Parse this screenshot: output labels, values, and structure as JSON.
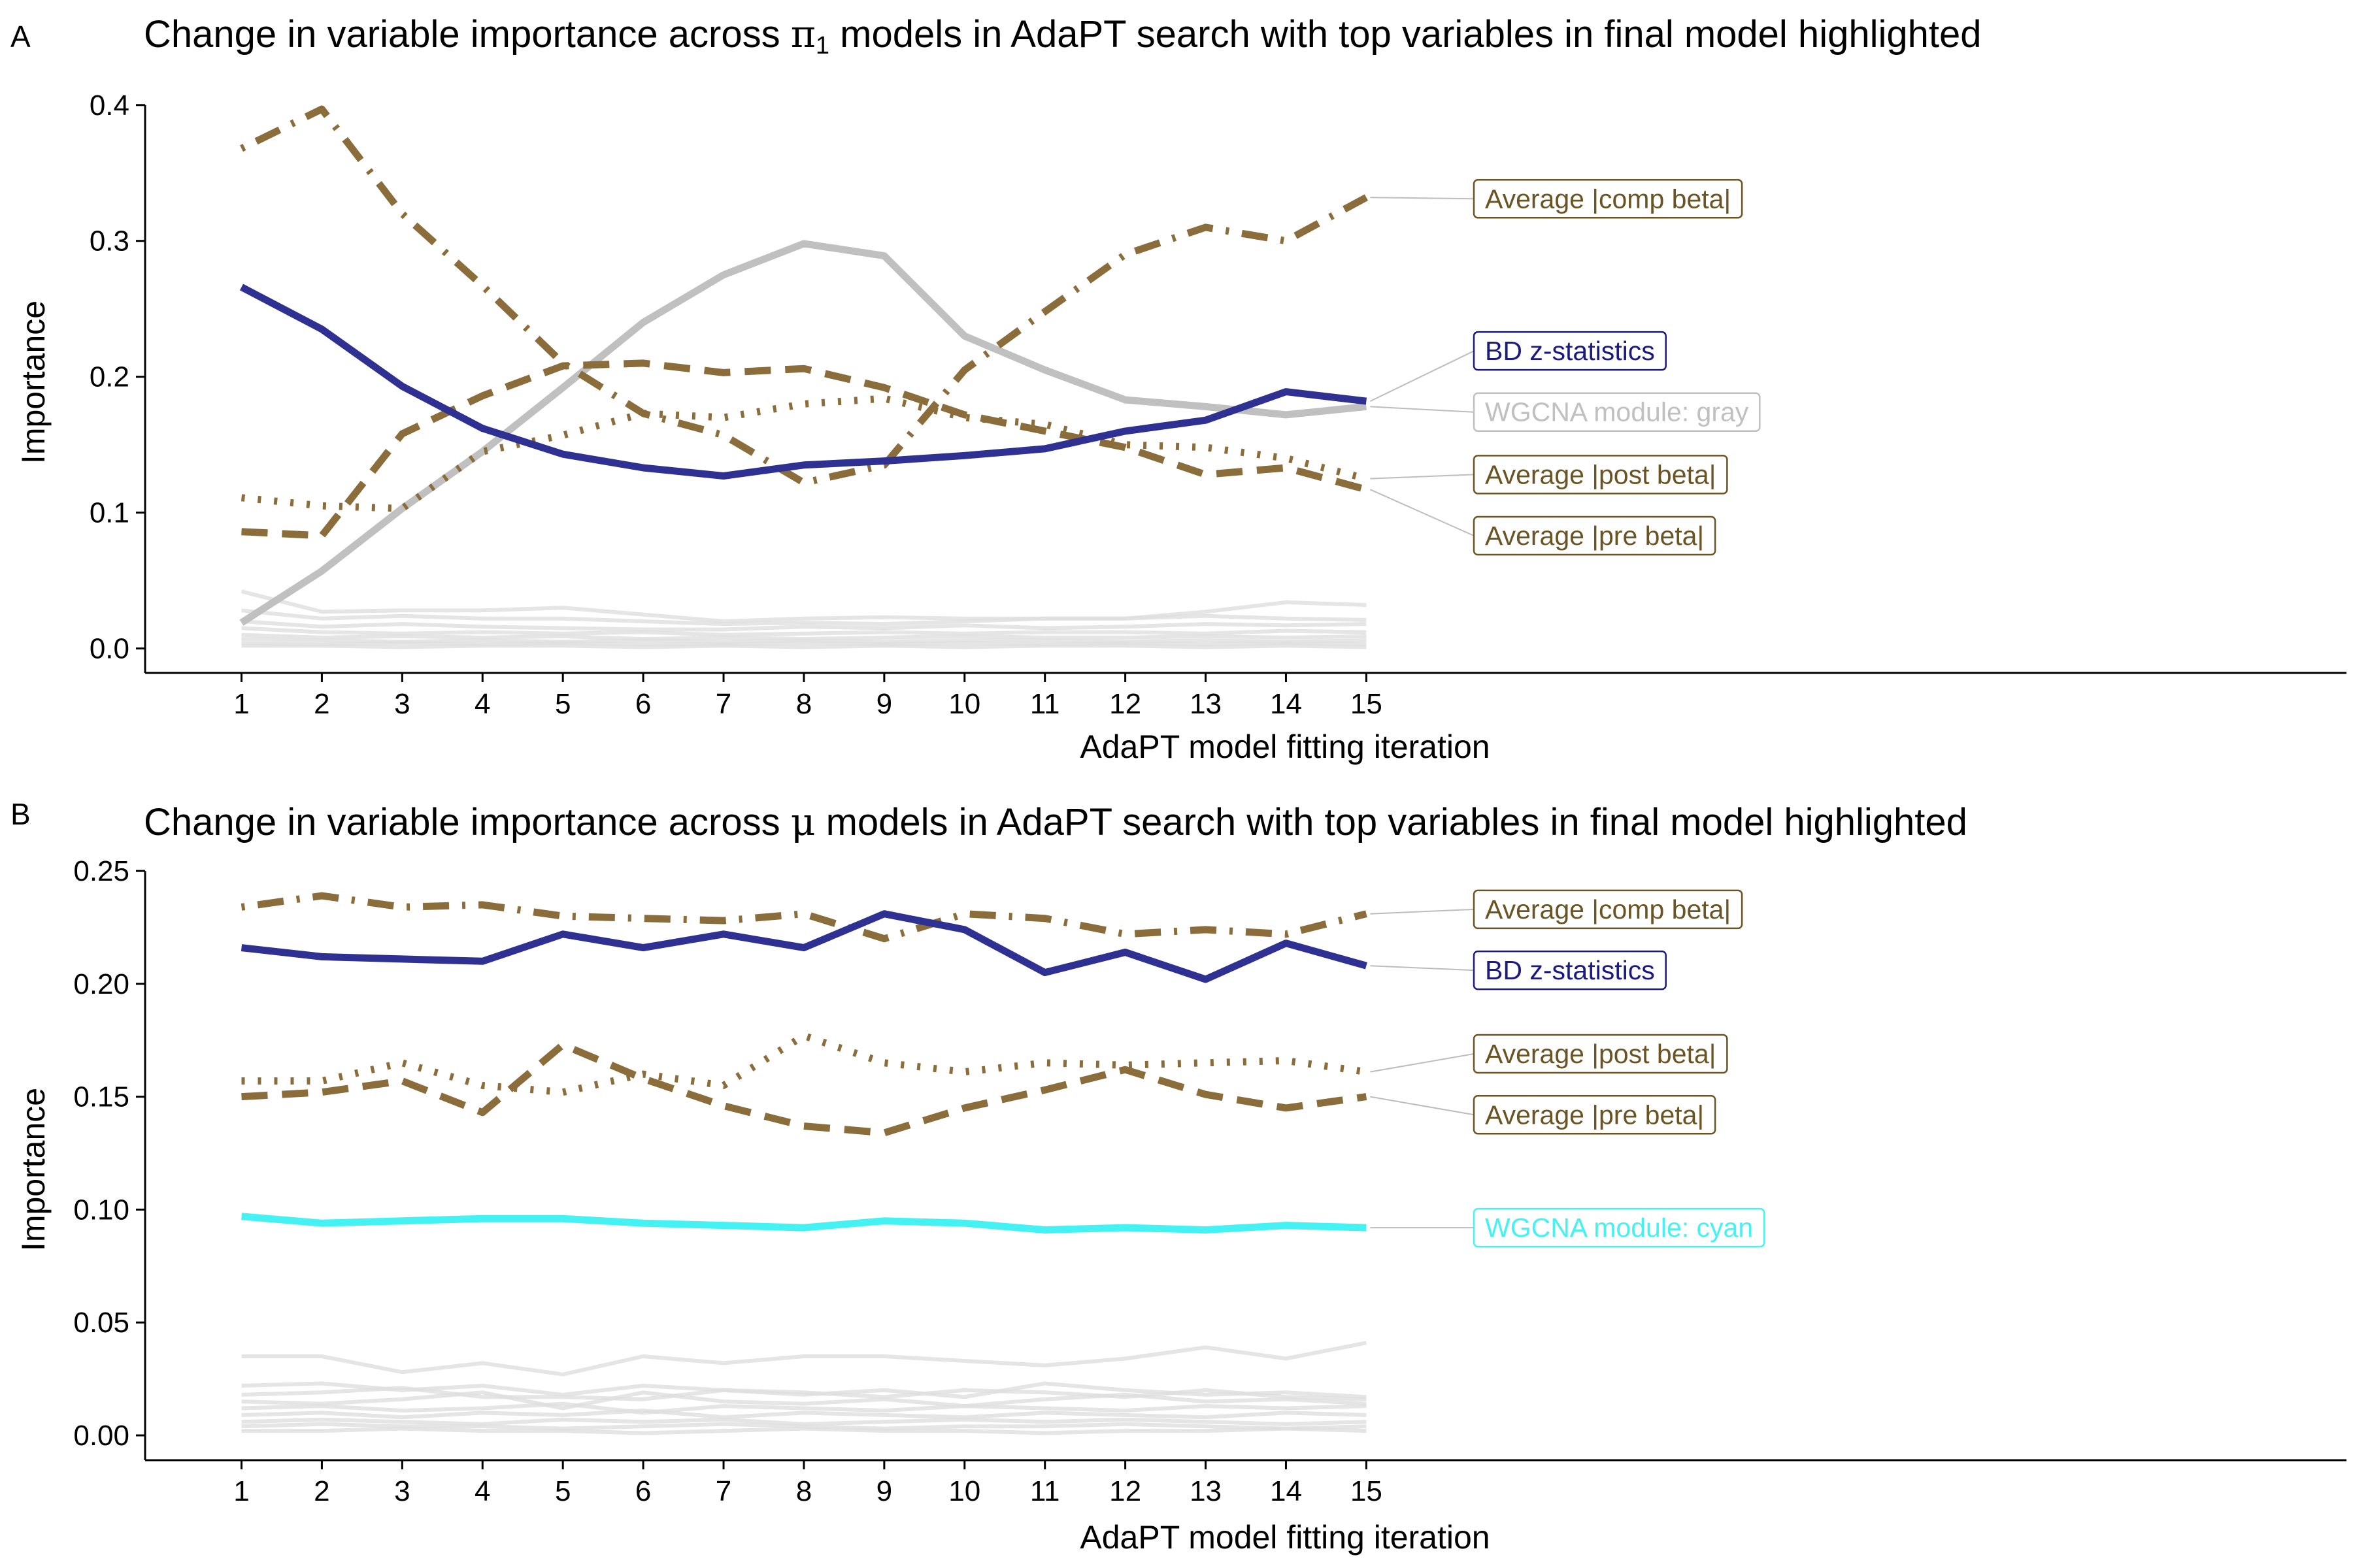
{
  "colors": {
    "bd": "#2e3192",
    "bd_label": "#1a1a80",
    "avg": "#8b6d3b",
    "avg_label": "#6b5424",
    "gray_module": "#c0c0c0",
    "cyan_module": "#44f2f4",
    "background_lines": "#dedede"
  },
  "chart_data": [
    {
      "type": "line",
      "panel": "A",
      "title_parts": [
        "Change in variable importance across ",
        "π",
        "1",
        " models in AdaPT search with top variables in final model highlighted"
      ],
      "xlabel": "AdaPT model fitting iteration",
      "ylabel": "Importance",
      "x": [
        1,
        2,
        3,
        4,
        5,
        6,
        7,
        8,
        9,
        10,
        11,
        12,
        13,
        14,
        15
      ],
      "xlim": [
        -0.2,
        27.2
      ],
      "ylim": [
        -0.018,
        0.41
      ],
      "yticks": [
        0.0,
        0.1,
        0.2,
        0.3,
        0.4
      ],
      "ytick_labels": [
        "0.0",
        "0.1",
        "0.2",
        "0.3",
        "0.4"
      ],
      "grid": false,
      "legend": "direct labels right",
      "background_series": [
        [
          0.042,
          0.027,
          0.028,
          0.028,
          0.03,
          0.025,
          0.02,
          0.022,
          0.023,
          0.022,
          0.022,
          0.022,
          0.027,
          0.034,
          0.032
        ],
        [
          0.028,
          0.022,
          0.024,
          0.022,
          0.022,
          0.02,
          0.018,
          0.019,
          0.018,
          0.02,
          0.022,
          0.022,
          0.024,
          0.022,
          0.021
        ],
        [
          0.02,
          0.016,
          0.018,
          0.016,
          0.015,
          0.014,
          0.014,
          0.016,
          0.015,
          0.017,
          0.015,
          0.016,
          0.018,
          0.017,
          0.018
        ],
        [
          0.015,
          0.012,
          0.011,
          0.012,
          0.011,
          0.012,
          0.01,
          0.011,
          0.012,
          0.011,
          0.012,
          0.012,
          0.011,
          0.013,
          0.012
        ],
        [
          0.01,
          0.008,
          0.009,
          0.008,
          0.009,
          0.007,
          0.008,
          0.007,
          0.008,
          0.009,
          0.008,
          0.008,
          0.009,
          0.008,
          0.009
        ],
        [
          0.007,
          0.006,
          0.005,
          0.006,
          0.005,
          0.006,
          0.005,
          0.006,
          0.005,
          0.006,
          0.006,
          0.005,
          0.006,
          0.005,
          0.006
        ],
        [
          0.004,
          0.003,
          0.004,
          0.003,
          0.004,
          0.003,
          0.003,
          0.004,
          0.003,
          0.004,
          0.003,
          0.004,
          0.003,
          0.004,
          0.003
        ],
        [
          0.002,
          0.002,
          0.001,
          0.002,
          0.002,
          0.001,
          0.002,
          0.001,
          0.002,
          0.001,
          0.002,
          0.002,
          0.001,
          0.002,
          0.001
        ]
      ],
      "series": [
        {
          "name": "WGCNA module: gray",
          "color": "#c0c0c0",
          "dash": "solid",
          "values": [
            0.019,
            0.057,
            0.103,
            0.145,
            0.192,
            0.24,
            0.275,
            0.298,
            0.289,
            0.23,
            0.205,
            0.183,
            0.178,
            0.172,
            0.178
          ]
        },
        {
          "name": "Average |pre beta|",
          "color": "#8b6d3b",
          "dash": "dashed",
          "values": [
            0.086,
            0.083,
            0.158,
            0.186,
            0.208,
            0.21,
            0.203,
            0.206,
            0.192,
            0.172,
            0.16,
            0.148,
            0.128,
            0.133,
            0.117
          ]
        },
        {
          "name": "Average |post beta|",
          "color": "#8b6d3b",
          "dash": "dotted",
          "values": [
            0.111,
            0.105,
            0.103,
            0.145,
            0.157,
            0.173,
            0.17,
            0.18,
            0.184,
            0.17,
            0.165,
            0.15,
            0.148,
            0.14,
            0.125
          ]
        },
        {
          "name": "Average |comp beta|",
          "color": "#8b6d3b",
          "dash": "dotdash",
          "values": [
            0.368,
            0.397,
            0.32,
            0.267,
            0.21,
            0.173,
            0.157,
            0.122,
            0.135,
            0.205,
            0.248,
            0.29,
            0.31,
            0.3,
            0.332
          ]
        },
        {
          "name": "BD z-statistics",
          "color": "#2e3192",
          "dash": "solid",
          "values": [
            0.266,
            0.235,
            0.193,
            0.162,
            0.143,
            0.133,
            0.127,
            0.135,
            0.138,
            0.142,
            0.147,
            0.16,
            0.168,
            0.189,
            0.182
          ]
        }
      ],
      "labels": [
        {
          "text": "Average |comp beta|",
          "series": "Average |comp beta|",
          "y": 0.331,
          "text_color": "#6b5424",
          "border_color": "#6b5424"
        },
        {
          "text": "BD z-statistics",
          "series": "BD z-statistics",
          "y": 0.219,
          "text_color": "#1a1a80",
          "border_color": "#1a1a80"
        },
        {
          "text": "WGCNA module: gray",
          "series": "WGCNA module: gray",
          "y": 0.174,
          "text_color": "#c0c0c0",
          "border_color": "#c0c0c0"
        },
        {
          "text": "Average |post beta|",
          "series": "Average |post beta|",
          "y": 0.128,
          "text_color": "#6b5424",
          "border_color": "#6b5424"
        },
        {
          "text": "Average |pre beta|",
          "series": "Average |pre beta|",
          "y": 0.083,
          "text_color": "#6b5424",
          "border_color": "#6b5424"
        }
      ]
    },
    {
      "type": "line",
      "panel": "B",
      "title_parts": [
        "Change in variable importance across ",
        "μ",
        "",
        " models in AdaPT search with top variables in final model highlighted"
      ],
      "xlabel": "AdaPT model fitting iteration",
      "ylabel": "Importance",
      "x": [
        1,
        2,
        3,
        4,
        5,
        6,
        7,
        8,
        9,
        10,
        11,
        12,
        13,
        14,
        15
      ],
      "xlim": [
        -0.2,
        27.2
      ],
      "ylim": [
        -0.011,
        0.248
      ],
      "yticks": [
        0.0,
        0.05,
        0.1,
        0.15,
        0.2,
        0.25
      ],
      "ytick_labels": [
        "0.00",
        "0.05",
        "0.10",
        "0.15",
        "0.20",
        "0.25"
      ],
      "grid": false,
      "legend": "direct labels right",
      "background_series": [
        [
          0.035,
          0.035,
          0.028,
          0.032,
          0.027,
          0.035,
          0.032,
          0.035,
          0.035,
          0.033,
          0.031,
          0.034,
          0.039,
          0.034,
          0.041
        ],
        [
          0.022,
          0.023,
          0.02,
          0.022,
          0.018,
          0.022,
          0.02,
          0.018,
          0.02,
          0.017,
          0.023,
          0.02,
          0.018,
          0.019,
          0.017
        ],
        [
          0.018,
          0.019,
          0.021,
          0.017,
          0.017,
          0.016,
          0.02,
          0.019,
          0.017,
          0.02,
          0.019,
          0.017,
          0.02,
          0.017,
          0.016
        ],
        [
          0.015,
          0.014,
          0.016,
          0.019,
          0.012,
          0.019,
          0.015,
          0.014,
          0.016,
          0.013,
          0.016,
          0.018,
          0.015,
          0.016,
          0.014
        ],
        [
          0.012,
          0.013,
          0.011,
          0.012,
          0.014,
          0.01,
          0.013,
          0.012,
          0.011,
          0.013,
          0.012,
          0.011,
          0.013,
          0.012,
          0.013
        ],
        [
          0.009,
          0.01,
          0.008,
          0.01,
          0.009,
          0.011,
          0.008,
          0.01,
          0.009,
          0.008,
          0.01,
          0.009,
          0.008,
          0.01,
          0.009
        ],
        [
          0.006,
          0.007,
          0.006,
          0.005,
          0.007,
          0.006,
          0.007,
          0.005,
          0.006,
          0.007,
          0.006,
          0.007,
          0.006,
          0.005,
          0.006
        ],
        [
          0.004,
          0.005,
          0.004,
          0.004,
          0.003,
          0.004,
          0.005,
          0.004,
          0.003,
          0.004,
          0.004,
          0.005,
          0.004,
          0.003,
          0.004
        ],
        [
          0.002,
          0.002,
          0.003,
          0.002,
          0.002,
          0.001,
          0.002,
          0.003,
          0.002,
          0.002,
          0.001,
          0.002,
          0.002,
          0.003,
          0.002
        ]
      ],
      "series": [
        {
          "name": "WGCNA module: cyan",
          "color": "#44f2f4",
          "dash": "solid",
          "values": [
            0.097,
            0.094,
            0.095,
            0.096,
            0.096,
            0.094,
            0.093,
            0.092,
            0.095,
            0.094,
            0.091,
            0.092,
            0.091,
            0.093,
            0.092
          ]
        },
        {
          "name": "Average |pre beta|",
          "color": "#8b6d3b",
          "dash": "dashed",
          "values": [
            0.15,
            0.152,
            0.157,
            0.143,
            0.173,
            0.158,
            0.146,
            0.137,
            0.134,
            0.145,
            0.153,
            0.162,
            0.151,
            0.145,
            0.15
          ]
        },
        {
          "name": "Average |post beta|",
          "color": "#8b6d3b",
          "dash": "dotted",
          "values": [
            0.157,
            0.157,
            0.165,
            0.155,
            0.152,
            0.16,
            0.155,
            0.177,
            0.165,
            0.161,
            0.165,
            0.164,
            0.165,
            0.166,
            0.161
          ]
        },
        {
          "name": "Average |comp beta|",
          "color": "#8b6d3b",
          "dash": "dotdash",
          "values": [
            0.234,
            0.239,
            0.234,
            0.235,
            0.23,
            0.229,
            0.228,
            0.231,
            0.22,
            0.231,
            0.229,
            0.222,
            0.224,
            0.222,
            0.231
          ]
        },
        {
          "name": "BD z-statistics",
          "color": "#2e3192",
          "dash": "solid",
          "values": [
            0.216,
            0.212,
            0.211,
            0.21,
            0.222,
            0.216,
            0.222,
            0.216,
            0.231,
            0.224,
            0.205,
            0.214,
            0.202,
            0.218,
            0.208
          ]
        }
      ],
      "labels": [
        {
          "text": "Average |comp beta|",
          "series": "Average |comp beta|",
          "y": 0.233,
          "text_color": "#6b5424",
          "border_color": "#6b5424"
        },
        {
          "text": "BD z-statistics",
          "series": "BD z-statistics",
          "y": 0.206,
          "text_color": "#1a1a80",
          "border_color": "#1a1a80"
        },
        {
          "text": "Average |post beta|",
          "series": "Average |post beta|",
          "y": 0.169,
          "text_color": "#6b5424",
          "border_color": "#6b5424"
        },
        {
          "text": "Average |pre beta|",
          "series": "Average |pre beta|",
          "y": 0.142,
          "text_color": "#6b5424",
          "border_color": "#6b5424"
        },
        {
          "text": "WGCNA module: cyan",
          "series": "WGCNA module: cyan",
          "y": 0.092,
          "text_color": "#44f2f4",
          "border_color": "#44f2f4"
        }
      ]
    }
  ]
}
